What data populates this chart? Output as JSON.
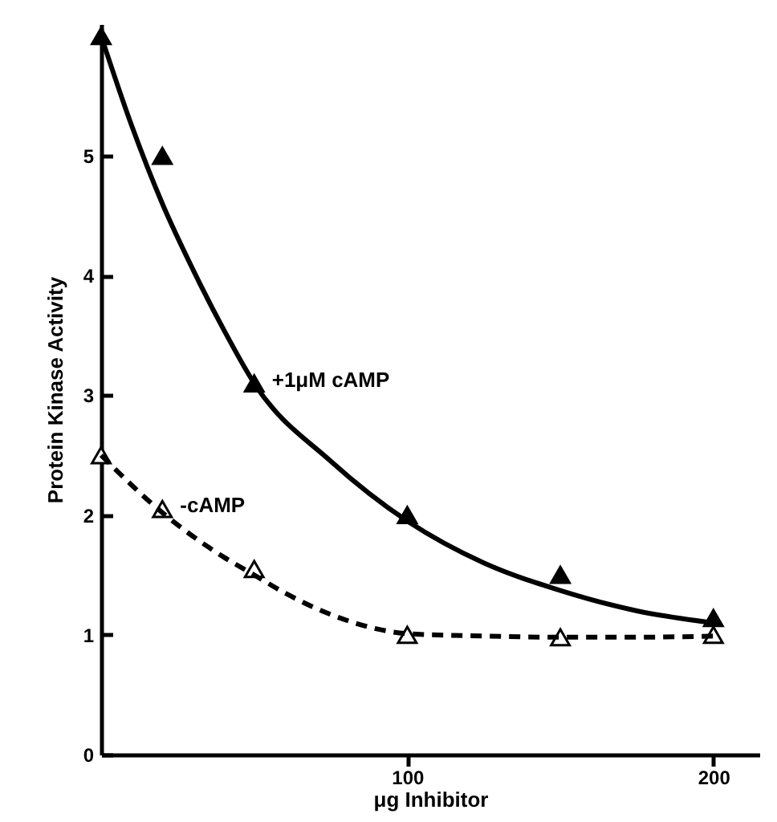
{
  "chart_data": {
    "type": "scatter",
    "xlabel": "μg Inhibitor",
    "ylabel": "Protein Kinase Activity",
    "xlim": [
      0,
      215
    ],
    "ylim": [
      0,
      6.1
    ],
    "xticks": [
      100,
      200
    ],
    "yticks": [
      0,
      1,
      2,
      3,
      4,
      5
    ],
    "grid": false,
    "marker": "triangle",
    "series": [
      {
        "name": "+1μM cAMP",
        "color": "#000000",
        "x": [
          0,
          20,
          50,
          100,
          150,
          200
        ],
        "values": [
          6.0,
          5.0,
          3.1,
          2.0,
          1.5,
          1.14
        ]
      },
      {
        "name": "-cAMP",
        "color": "#ffffff",
        "x": [
          0,
          20,
          50,
          100,
          150,
          200
        ],
        "values": [
          2.5,
          2.05,
          1.55,
          1.0,
          0.98,
          1.0
        ]
      },
      {
        "type": "line",
        "marker": "none",
        "color": "#000000",
        "line_style": "solid",
        "x": [
          0,
          10,
          20,
          30,
          40,
          50,
          75,
          100,
          125,
          150,
          175,
          200
        ],
        "values": [
          6.0,
          5.25,
          4.6,
          4.05,
          3.55,
          3.1,
          2.45,
          1.95,
          1.6,
          1.37,
          1.2,
          1.1
        ]
      },
      {
        "type": "line",
        "marker": "none",
        "color": "#000000",
        "line_style": "dashed",
        "x": [
          0,
          20,
          40,
          50,
          60,
          75,
          90,
          100,
          125,
          150,
          175,
          200
        ],
        "values": [
          2.5,
          2.02,
          1.65,
          1.5,
          1.35,
          1.17,
          1.05,
          1.01,
          0.99,
          0.98,
          0.98,
          0.99
        ]
      }
    ]
  }
}
